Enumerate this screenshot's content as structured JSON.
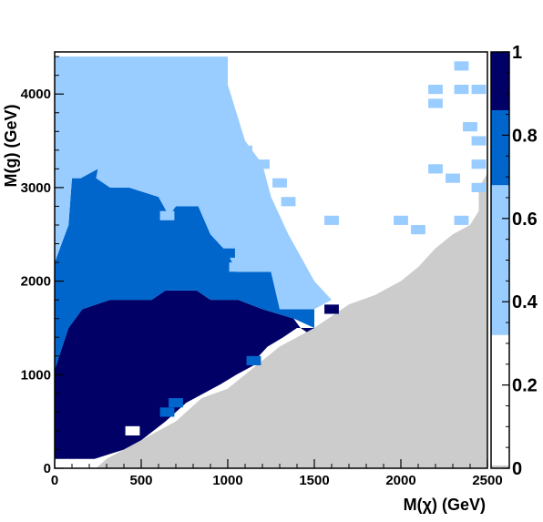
{
  "chart_data": {
    "type": "heatmap",
    "xlabel": "M(χ) (GeV)",
    "ylabel": "M(g) (GeV)",
    "xlim": [
      0,
      2500
    ],
    "ylim": [
      0,
      4450
    ],
    "zlim": [
      0,
      1
    ],
    "x_ticks": [
      0,
      500,
      1000,
      1500,
      2000,
      2500
    ],
    "x_tick_labels": [
      "0",
      "500",
      "1000",
      "1500",
      "2000",
      "2500"
    ],
    "y_ticks": [
      0,
      1000,
      2000,
      3000,
      4000
    ],
    "y_tick_labels": [
      "0",
      "1000",
      "2000",
      "3000",
      "4000"
    ],
    "z_ticks": [
      0,
      0.2,
      0.4,
      0.6,
      0.8,
      1
    ],
    "z_tick_labels": [
      "0",
      "0.2",
      "0.4",
      "0.6",
      "0.8",
      "1"
    ],
    "colorbar": [
      {
        "from": 0.0,
        "to": 0.007,
        "color": "#cccccc"
      },
      {
        "from": 0.007,
        "to": 0.32,
        "color": "#ffffff"
      },
      {
        "from": 0.32,
        "to": 0.68,
        "color": "#99ccff"
      },
      {
        "from": 0.68,
        "to": 0.86,
        "color": "#0066cc"
      },
      {
        "from": 0.86,
        "to": 1.0,
        "color": "#000066"
      }
    ],
    "regions": [
      {
        "name": "excluded",
        "color": "#000066",
        "points": [
          [
            0,
            100
          ],
          [
            230,
            100
          ],
          [
            400,
            200
          ],
          [
            500,
            300
          ],
          [
            640,
            500
          ],
          [
            700,
            600
          ],
          [
            760,
            700
          ],
          [
            860,
            800
          ],
          [
            960,
            900
          ],
          [
            1050,
            1000
          ],
          [
            1150,
            1100
          ],
          [
            1180,
            1200
          ],
          [
            1230,
            1300
          ],
          [
            1320,
            1400
          ],
          [
            1400,
            1500
          ],
          [
            1500,
            1500
          ],
          [
            1500,
            1400
          ],
          [
            1420,
            1500
          ],
          [
            1380,
            1600
          ],
          [
            1200,
            1700
          ],
          [
            1060,
            1800
          ],
          [
            900,
            1800
          ],
          [
            820,
            1900
          ],
          [
            640,
            1900
          ],
          [
            560,
            1800
          ],
          [
            320,
            1800
          ],
          [
            160,
            1700
          ],
          [
            80,
            1500
          ],
          [
            0,
            1050
          ]
        ]
      },
      {
        "name": "partly-excluded",
        "color": "#0066cc",
        "points": [
          [
            0,
            1050
          ],
          [
            80,
            1500
          ],
          [
            160,
            1700
          ],
          [
            320,
            1800
          ],
          [
            560,
            1800
          ],
          [
            640,
            1900
          ],
          [
            820,
            1900
          ],
          [
            900,
            1800
          ],
          [
            1060,
            1800
          ],
          [
            1200,
            1700
          ],
          [
            1380,
            1600
          ],
          [
            1500,
            1500
          ],
          [
            1500,
            1700
          ],
          [
            1300,
            1700
          ],
          [
            1250,
            2100
          ],
          [
            1050,
            2100
          ],
          [
            1000,
            2300
          ],
          [
            900,
            2500
          ],
          [
            830,
            2800
          ],
          [
            700,
            2800
          ],
          [
            660,
            2700
          ],
          [
            600,
            2900
          ],
          [
            430,
            3000
          ],
          [
            320,
            3000
          ],
          [
            240,
            3100
          ],
          [
            250,
            3200
          ],
          [
            150,
            3100
          ],
          [
            100,
            3100
          ],
          [
            80,
            2600
          ],
          [
            0,
            2200
          ]
        ]
      },
      {
        "name": "weak-sensitivity",
        "color": "#99ccff",
        "points": [
          [
            0,
            2200
          ],
          [
            80,
            2600
          ],
          [
            100,
            3100
          ],
          [
            150,
            3100
          ],
          [
            250,
            3200
          ],
          [
            240,
            3100
          ],
          [
            320,
            3000
          ],
          [
            430,
            3000
          ],
          [
            600,
            2900
          ],
          [
            660,
            2700
          ],
          [
            700,
            2800
          ],
          [
            830,
            2800
          ],
          [
            900,
            2500
          ],
          [
            1000,
            2300
          ],
          [
            1050,
            2100
          ],
          [
            1250,
            2100
          ],
          [
            1300,
            1700
          ],
          [
            1500,
            1700
          ],
          [
            1600,
            1800
          ],
          [
            1500,
            2000
          ],
          [
            1350,
            2500
          ],
          [
            1250,
            2900
          ],
          [
            1200,
            3250
          ],
          [
            1100,
            3500
          ],
          [
            1050,
            3800
          ],
          [
            1000,
            4100
          ],
          [
            1000,
            4400
          ],
          [
            0,
            4400
          ]
        ]
      }
    ],
    "patches": [
      {
        "x": 1100,
        "y": 3400,
        "v": 0.5
      },
      {
        "x": 1200,
        "y": 3250,
        "v": 0.5
      },
      {
        "x": 1300,
        "y": 3050,
        "v": 0.5
      },
      {
        "x": 1350,
        "y": 2850,
        "v": 0.5
      },
      {
        "x": 1050,
        "y": 4350,
        "v": 0.3
      },
      {
        "x": 1600,
        "y": 2650,
        "v": 0.5
      },
      {
        "x": 2000,
        "y": 2650,
        "v": 0.5
      },
      {
        "x": 2100,
        "y": 2550,
        "v": 0.5
      },
      {
        "x": 2350,
        "y": 2650,
        "v": 0.5
      },
      {
        "x": 2200,
        "y": 3200,
        "v": 0.5
      },
      {
        "x": 2300,
        "y": 3100,
        "v": 0.5
      },
      {
        "x": 2200,
        "y": 4050,
        "v": 0.5
      },
      {
        "x": 2200,
        "y": 3900,
        "v": 0.5
      },
      {
        "x": 2350,
        "y": 4050,
        "v": 0.5
      },
      {
        "x": 2450,
        "y": 4050,
        "v": 0.5
      },
      {
        "x": 2350,
        "y": 4300,
        "v": 0.5
      },
      {
        "x": 2400,
        "y": 3650,
        "v": 0.5
      },
      {
        "x": 2450,
        "y": 3500,
        "v": 0.5
      },
      {
        "x": 2450,
        "y": 3250,
        "v": 0.5
      },
      {
        "x": 2450,
        "y": 3000,
        "v": 0.5
      },
      {
        "x": 1600,
        "y": 1700,
        "v": 0.9
      },
      {
        "x": 1150,
        "y": 1150,
        "v": 0.75
      },
      {
        "x": 700,
        "y": 700,
        "v": 0.75
      },
      {
        "x": 650,
        "y": 600,
        "v": 0.75
      },
      {
        "x": 750,
        "y": 2750,
        "v": 0.75
      },
      {
        "x": 1050,
        "y": 2150,
        "v": 0.5
      },
      {
        "x": 1000,
        "y": 2300,
        "v": 0.75
      },
      {
        "x": 450,
        "y": 400,
        "v": 0.1
      },
      {
        "x": 650,
        "y": 2700,
        "v": 0.5
      },
      {
        "x": 1050,
        "y": 3500,
        "v": 0.5
      }
    ],
    "diagonal_excluded_boundary": [
      [
        0,
        0
      ],
      [
        240,
        0
      ],
      [
        300,
        100
      ],
      [
        500,
        300
      ],
      [
        700,
        500
      ],
      [
        850,
        750
      ],
      [
        1000,
        850
      ],
      [
        1100,
        1000
      ],
      [
        1200,
        1150
      ],
      [
        1300,
        1300
      ],
      [
        1400,
        1400
      ],
      [
        1500,
        1500
      ],
      [
        1700,
        1750
      ],
      [
        1850,
        1850
      ],
      [
        2000,
        2000
      ],
      [
        2100,
        2150
      ],
      [
        2200,
        2350
      ],
      [
        2300,
        2500
      ],
      [
        2400,
        2600
      ],
      [
        2450,
        2750
      ],
      [
        2450,
        3000
      ],
      [
        2500,
        3150
      ],
      [
        2500,
        3350
      ],
      [
        2500,
        3500
      ],
      [
        2500,
        3750
      ],
      [
        2500,
        4000
      ],
      [
        2500,
        4350
      ],
      [
        2500,
        0
      ]
    ]
  }
}
